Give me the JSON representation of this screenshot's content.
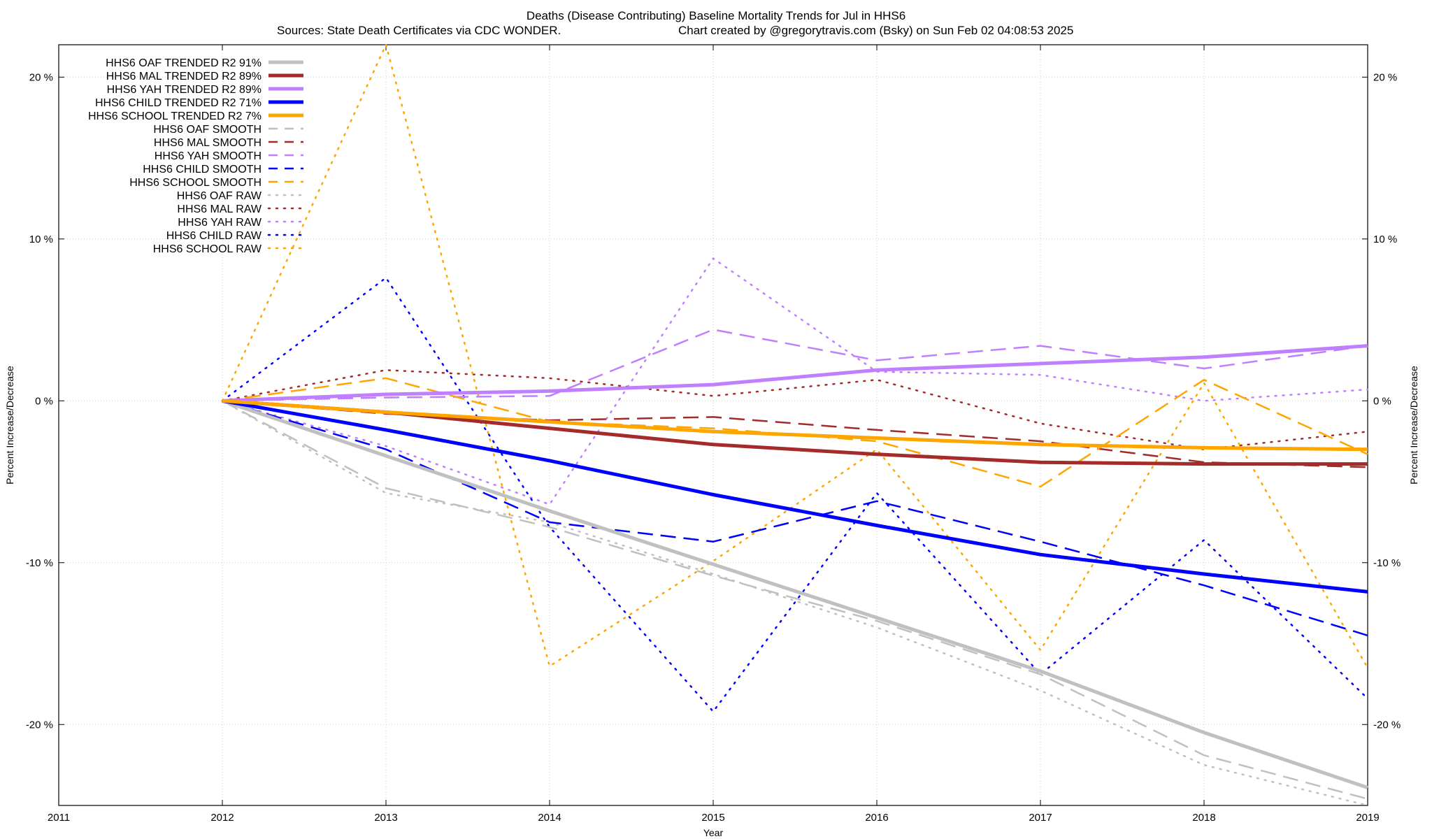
{
  "chart_data": {
    "type": "line",
    "title": "Deaths (Disease Contributing)  Baseline Mortality Trends for Jul in HHS6",
    "subtitle_left": "Sources: State Death Certificates via CDC WONDER.",
    "subtitle_right": "Chart created by @gregorytravis.com (Bsky) on Sun Feb 02 04:08:53 2025",
    "xlabel": "Year",
    "ylabel": "Percent Increase/Decrease",
    "ylabel_right": "Percent Increase/Decrease",
    "xlim": [
      2011,
      2019
    ],
    "ylim": [
      -25,
      22
    ],
    "x_ticks": [
      "2011",
      "2012",
      "2013",
      "2014",
      "2015",
      "2016",
      "2017",
      "2018",
      "2019"
    ],
    "y_ticks": [
      {
        "value": 20,
        "label": "20 %"
      },
      {
        "value": 10,
        "label": "10 %"
      },
      {
        "value": 0,
        "label": "0 %"
      },
      {
        "value": -10,
        "label": "-10 %"
      },
      {
        "value": -20,
        "label": "-20 %"
      }
    ],
    "grid": true,
    "legend_position": "top-left",
    "x": [
      2012,
      2013,
      2014,
      2015,
      2016,
      2017,
      2018,
      2019
    ],
    "series": [
      {
        "name": "HHS6 OAF TRENDED R2  91%",
        "color": "#c0c0c0",
        "style": "solid",
        "values": [
          0,
          -3.4,
          -6.8,
          -10.1,
          -13.4,
          -16.7,
          -20.5,
          -23.9
        ]
      },
      {
        "name": "HHS6 MAL TRENDED R2  89%",
        "color": "#a52a2a",
        "style": "solid",
        "values": [
          0,
          -0.7,
          -1.7,
          -2.7,
          -3.3,
          -3.8,
          -3.9,
          -3.9
        ]
      },
      {
        "name": "HHS6 YAH TRENDED R2  89%",
        "color": "#bf7fff",
        "style": "solid",
        "values": [
          0,
          0.4,
          0.6,
          1.0,
          1.9,
          2.3,
          2.7,
          3.4
        ]
      },
      {
        "name": "HHS6 CHILD TRENDED R2  71%",
        "color": "#0000ff",
        "style": "solid",
        "values": [
          0,
          -1.8,
          -3.7,
          -5.8,
          -7.7,
          -9.5,
          -10.7,
          -11.8
        ]
      },
      {
        "name": "HHS6 SCHOOL TRENDED R2  7%",
        "color": "#ffa500",
        "style": "solid",
        "values": [
          0,
          -0.7,
          -1.3,
          -1.9,
          -2.3,
          -2.7,
          -2.9,
          -3.0
        ]
      },
      {
        "name": "HHS6 OAF SMOOTH",
        "color": "#c0c0c0",
        "style": "dash",
        "values": [
          0,
          -5.4,
          -7.8,
          -10.8,
          -13.6,
          -16.9,
          -21.9,
          -24.6
        ]
      },
      {
        "name": "HHS6 MAL SMOOTH",
        "color": "#a52a2a",
        "style": "dash",
        "values": [
          0,
          -0.8,
          -1.2,
          -1.0,
          -1.8,
          -2.5,
          -3.8,
          -4.1
        ]
      },
      {
        "name": "HHS6 YAH SMOOTH",
        "color": "#bf7fff",
        "style": "dash",
        "values": [
          0,
          0.2,
          0.3,
          4.4,
          2.5,
          3.4,
          2.0,
          3.4
        ]
      },
      {
        "name": "HHS6 CHILD SMOOTH",
        "color": "#0000ff",
        "style": "dash",
        "values": [
          0,
          -3.0,
          -7.5,
          -8.7,
          -6.2,
          -8.7,
          -11.4,
          -14.5
        ]
      },
      {
        "name": "HHS6 SCHOOL SMOOTH",
        "color": "#ffa500",
        "style": "dash",
        "values": [
          0,
          1.4,
          -1.3,
          -1.7,
          -2.5,
          -5.3,
          1.3,
          -3.3
        ]
      },
      {
        "name": "HHS6 OAF RAW",
        "color": "#c0c0c0",
        "style": "dot",
        "values": [
          0,
          -5.7,
          -7.5,
          -10.7,
          -14.0,
          -17.9,
          -22.5,
          -25.0
        ]
      },
      {
        "name": "HHS6 MAL RAW",
        "color": "#a52a2a",
        "style": "dot",
        "values": [
          0,
          1.9,
          1.4,
          0.3,
          1.3,
          -1.4,
          -3.0,
          -1.9
        ]
      },
      {
        "name": "HHS6 YAH RAW",
        "color": "#bf7fff",
        "style": "dot",
        "values": [
          0,
          -2.8,
          -6.4,
          8.8,
          1.8,
          1.6,
          0.0,
          0.7
        ]
      },
      {
        "name": "HHS6 CHILD RAW",
        "color": "#0000ff",
        "style": "dot",
        "values": [
          0,
          7.6,
          -7.8,
          -19.2,
          -5.7,
          -16.9,
          -8.6,
          -18.4
        ]
      },
      {
        "name": "HHS6 SCHOOL RAW",
        "color": "#ffa500",
        "style": "dot",
        "values": [
          0,
          22.0,
          -16.4,
          -9.9,
          -3.0,
          -15.4,
          1.1,
          -16.5
        ]
      }
    ]
  }
}
